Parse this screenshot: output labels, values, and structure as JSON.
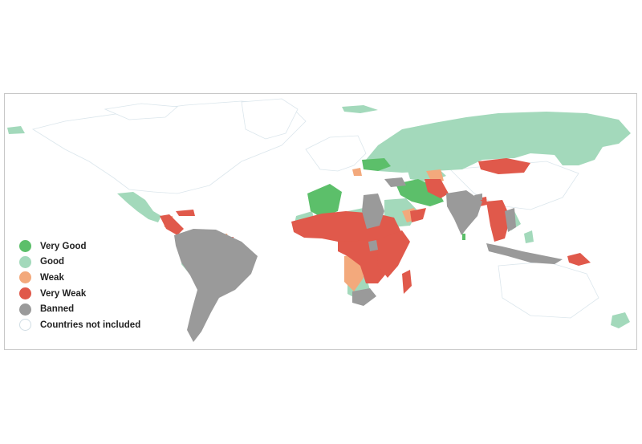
{
  "legend": {
    "items": [
      {
        "label": "Very Good",
        "color": "#5cbf6a"
      },
      {
        "label": "Good",
        "color": "#a3d9bb"
      },
      {
        "label": "Weak",
        "color": "#f3a97c"
      },
      {
        "label": "Very Weak",
        "color": "#e0594b"
      },
      {
        "label": "Banned",
        "color": "#9a9a9a"
      },
      {
        "label": "Countries not included",
        "color": "#ffffff"
      }
    ]
  },
  "colors": {
    "very_good": "#5cbf6a",
    "good": "#a3d9bb",
    "weak": "#f3a97c",
    "very_weak": "#e0594b",
    "banned": "#9a9a9a",
    "not_included": "#ffffff",
    "border": "#dde8ee"
  }
}
